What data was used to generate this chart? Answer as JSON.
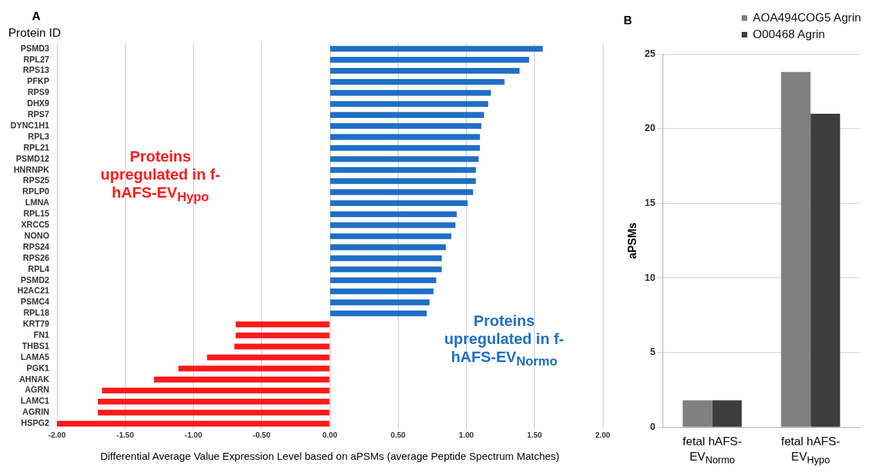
{
  "chart_data": [
    {
      "type": "bar",
      "orientation": "horizontal",
      "ylabel": "Protein ID",
      "xlabel": "Differential Average Value Expression Level based on aPSMs (average Peptide Spectrum Matches)",
      "categories": [
        "PSMD3",
        "RPL27",
        "RPS13",
        "PFKP",
        "RPS9",
        "DHX9",
        "RPS7",
        "DYNC1H1",
        "RPL3",
        "RPL21",
        "PSMD12",
        "HNRNPK",
        "RPS25",
        "RPLP0",
        "LMNA",
        "RPL15",
        "XRCC5",
        "NONO",
        "RPS24",
        "RPS26",
        "RPL4",
        "PSMD2",
        "H2AC21",
        "PSMC4",
        "RPL18",
        "KRT79",
        "FN1",
        "THBS1",
        "LAMA5",
        "PGK1",
        "AHNAK",
        "AGRN",
        "LAMC1",
        "AGRIN",
        "HSPG2"
      ],
      "values": [
        1.56,
        1.46,
        1.39,
        1.28,
        1.18,
        1.16,
        1.13,
        1.11,
        1.1,
        1.1,
        1.09,
        1.07,
        1.07,
        1.05,
        1.01,
        0.93,
        0.92,
        0.89,
        0.85,
        0.82,
        0.82,
        0.78,
        0.76,
        0.73,
        0.71,
        -0.69,
        -0.69,
        -0.7,
        -0.9,
        -1.11,
        -1.29,
        -1.67,
        -1.7,
        -1.7,
        -2.0
      ],
      "colors": [
        "#1f6fc5",
        "#1f6fc5",
        "#1f6fc5",
        "#1f6fc5",
        "#1f6fc5",
        "#1f6fc5",
        "#1f6fc5",
        "#1f6fc5",
        "#1f6fc5",
        "#1f6fc5",
        "#1f6fc5",
        "#1f6fc5",
        "#1f6fc5",
        "#1f6fc5",
        "#1f6fc5",
        "#1f6fc5",
        "#1f6fc5",
        "#1f6fc5",
        "#1f6fc5",
        "#1f6fc5",
        "#1f6fc5",
        "#1f6fc5",
        "#1f6fc5",
        "#1f6fc5",
        "#1f6fc5",
        "#ff1a1a",
        "#ff1a1a",
        "#ff1a1a",
        "#ff1a1a",
        "#ff1a1a",
        "#ff1a1a",
        "#ff1a1a",
        "#ff1a1a",
        "#ff1a1a",
        "#ff1a1a"
      ],
      "xlim": [
        -2,
        2
      ],
      "xticks": [
        {
          "value": -2,
          "label": "-2.00"
        },
        {
          "value": -1.5,
          "label": "-1.50"
        },
        {
          "value": -1,
          "label": "-1.00"
        },
        {
          "value": -0.5,
          "label": "-0.50"
        },
        {
          "value": 0,
          "label": "0.00"
        },
        {
          "value": 0.5,
          "label": "0.50"
        },
        {
          "value": 1,
          "label": "1.00"
        },
        {
          "value": 1.5,
          "label": "1.50"
        },
        {
          "value": 2,
          "label": "2.00"
        }
      ],
      "grid": "x",
      "annotations": [
        "A",
        "Proteins upregulated in f-hAFS-EV$_{Hypo}$",
        "Proteins upregulated in f-hAFS-EV$_{Normo}$"
      ]
    },
    {
      "type": "bar",
      "ylabel": "aPSMs",
      "categories": [
        "fetal hAFS-EV$_{Normo}$",
        "fetal hAFS-EV$_{Hypo}$"
      ],
      "series": [
        {
          "name": "AOA494COG5 Agrin",
          "color": "#808080",
          "values": [
            1.8,
            23.8
          ]
        },
        {
          "name": "O00468 Agrin",
          "color": "#3c3c3c",
          "values": [
            1.8,
            21.0
          ]
        }
      ],
      "ylim": [
        0,
        25
      ],
      "yticks": [
        0,
        5,
        10,
        15,
        20,
        25
      ],
      "grid": "y",
      "legend": "top right",
      "annotations": [
        "B"
      ]
    }
  ]
}
